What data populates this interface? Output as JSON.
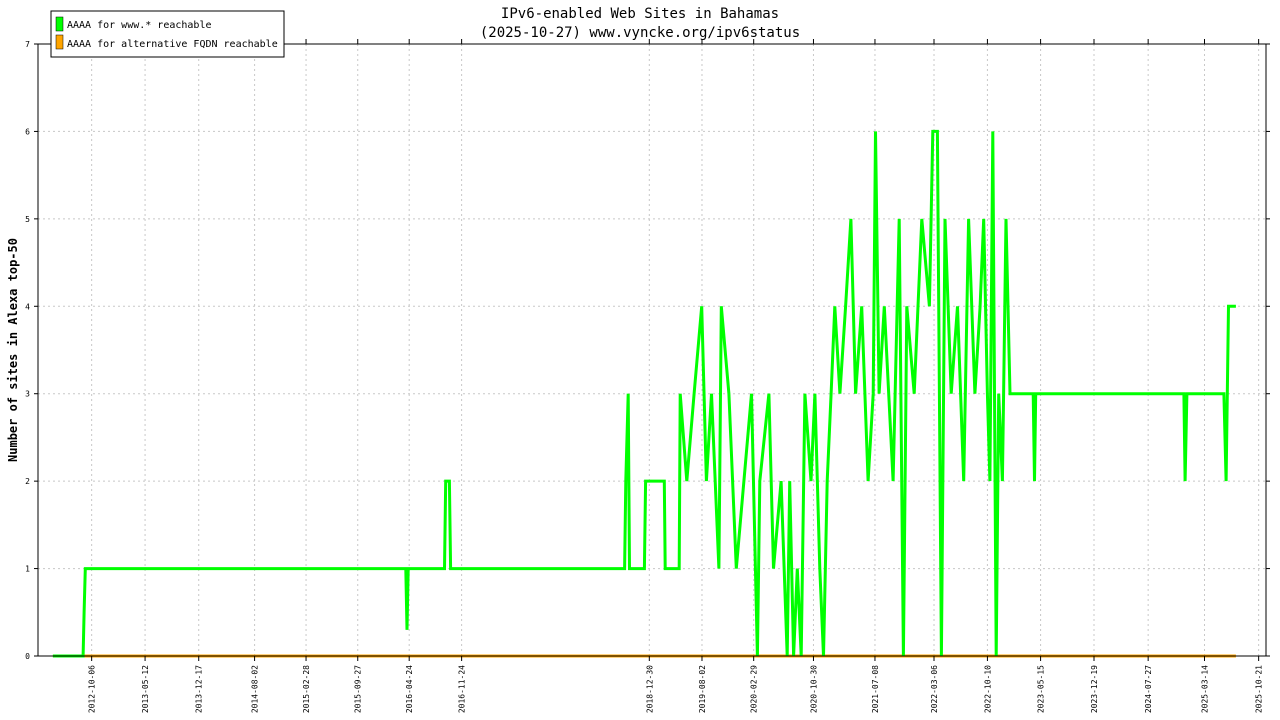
{
  "chart_data": {
    "type": "line",
    "title": "IPv6-enabled Web Sites in Bahamas",
    "subtitle": "(2025-10-27) www.vyncke.org/ipv6status",
    "ylabel": "Number of sites in Alexa top-50",
    "xlabel": "",
    "ylim": [
      0,
      7
    ],
    "yticks": [
      "0",
      "1",
      "2",
      "3",
      "4",
      "5",
      "6",
      "7"
    ],
    "xlim": [
      "2012-03-01",
      "2025-11-20"
    ],
    "xticks": [
      "2012-10-06",
      "2013-05-12",
      "2013-12-17",
      "2014-08-02",
      "2015-02-28",
      "2015-09-27",
      "2016-04-24",
      "2016-11-24",
      "2018-12-30",
      "2019-08-02",
      "2020-02-29",
      "2020-10-30",
      "2021-07-08",
      "2022-03-06",
      "2022-10-10",
      "2023-05-15",
      "2023-12-19",
      "2024-07-27",
      "2025-03-14",
      "2025-10-21"
    ],
    "grid": true,
    "legend_position": "top-left",
    "series": [
      {
        "name": "AAAA for www.* reachable",
        "color": "#00ff00",
        "points": [
          [
            "2012-05-01",
            0
          ],
          [
            "2012-09-01",
            0
          ],
          [
            "2012-09-05",
            0.5
          ],
          [
            "2012-09-10",
            1
          ],
          [
            "2016-04-10",
            1
          ],
          [
            "2016-04-15",
            0.3
          ],
          [
            "2016-04-20",
            1
          ],
          [
            "2016-09-15",
            1
          ],
          [
            "2016-09-20",
            2
          ],
          [
            "2016-10-05",
            2
          ],
          [
            "2016-10-10",
            1
          ],
          [
            "2018-09-20",
            1
          ],
          [
            "2018-09-25",
            2
          ],
          [
            "2018-10-05",
            3
          ],
          [
            "2018-10-10",
            1
          ],
          [
            "2018-12-10",
            1
          ],
          [
            "2018-12-15",
            2
          ],
          [
            "2019-03-01",
            2
          ],
          [
            "2019-03-05",
            1
          ],
          [
            "2019-05-01",
            1
          ],
          [
            "2019-05-05",
            3
          ],
          [
            "2019-06-01",
            2
          ],
          [
            "2019-07-01",
            3
          ],
          [
            "2019-08-01",
            4
          ],
          [
            "2019-08-20",
            2
          ],
          [
            "2019-09-10",
            3
          ],
          [
            "2019-10-10",
            1
          ],
          [
            "2019-10-20",
            4
          ],
          [
            "2019-11-20",
            3
          ],
          [
            "2019-12-20",
            1
          ],
          [
            "2020-01-20",
            2
          ],
          [
            "2020-02-20",
            3
          ],
          [
            "2020-03-15",
            0
          ],
          [
            "2020-03-25",
            2
          ],
          [
            "2020-05-01",
            3
          ],
          [
            "2020-05-20",
            1
          ],
          [
            "2020-06-20",
            2
          ],
          [
            "2020-07-15",
            0
          ],
          [
            "2020-07-25",
            2
          ],
          [
            "2020-08-10",
            0
          ],
          [
            "2020-08-25",
            1
          ],
          [
            "2020-09-10",
            0
          ],
          [
            "2020-09-25",
            3
          ],
          [
            "2020-10-20",
            2
          ],
          [
            "2020-11-05",
            3
          ],
          [
            "2020-11-25",
            1
          ],
          [
            "2020-12-10",
            0
          ],
          [
            "2020-12-25",
            2
          ],
          [
            "2021-01-10",
            3
          ],
          [
            "2021-01-25",
            4
          ],
          [
            "2021-02-15",
            3
          ],
          [
            "2021-03-10",
            4
          ],
          [
            "2021-04-01",
            5
          ],
          [
            "2021-04-20",
            3
          ],
          [
            "2021-05-15",
            4
          ],
          [
            "2021-06-10",
            2
          ],
          [
            "2021-07-01",
            3
          ],
          [
            "2021-07-10",
            6
          ],
          [
            "2021-07-25",
            3
          ],
          [
            "2021-08-15",
            4
          ],
          [
            "2021-09-20",
            2
          ],
          [
            "2021-10-15",
            5
          ],
          [
            "2021-11-01",
            0
          ],
          [
            "2021-11-15",
            4
          ],
          [
            "2021-12-15",
            3
          ],
          [
            "2022-01-15",
            5
          ],
          [
            "2022-02-15",
            4
          ],
          [
            "2022-03-01",
            6
          ],
          [
            "2022-03-20",
            6
          ],
          [
            "2022-04-05",
            0
          ],
          [
            "2022-04-20",
            5
          ],
          [
            "2022-05-15",
            3
          ],
          [
            "2022-06-10",
            4
          ],
          [
            "2022-07-05",
            2
          ],
          [
            "2022-07-25",
            5
          ],
          [
            "2022-08-20",
            3
          ],
          [
            "2022-09-10",
            4
          ],
          [
            "2022-09-25",
            5
          ],
          [
            "2022-10-10",
            3
          ],
          [
            "2022-10-20",
            2
          ],
          [
            "2022-11-01",
            6
          ],
          [
            "2022-11-15",
            0
          ],
          [
            "2022-11-25",
            3
          ],
          [
            "2022-12-10",
            2
          ],
          [
            "2022-12-25",
            5
          ],
          [
            "2023-01-10",
            3
          ],
          [
            "2023-04-15",
            3
          ],
          [
            "2023-04-20",
            2
          ],
          [
            "2023-04-25",
            3
          ],
          [
            "2024-12-20",
            3
          ],
          [
            "2024-12-25",
            2
          ],
          [
            "2025-01-01",
            3
          ],
          [
            "2025-06-01",
            3
          ],
          [
            "2025-06-10",
            2
          ],
          [
            "2025-06-20",
            4
          ],
          [
            "2025-07-20",
            4
          ]
        ]
      },
      {
        "name": "AAAA for alternative FQDN reachable",
        "color": "#ffa500",
        "points": [
          [
            "2012-05-01",
            0
          ],
          [
            "2025-07-20",
            0
          ]
        ]
      }
    ]
  }
}
